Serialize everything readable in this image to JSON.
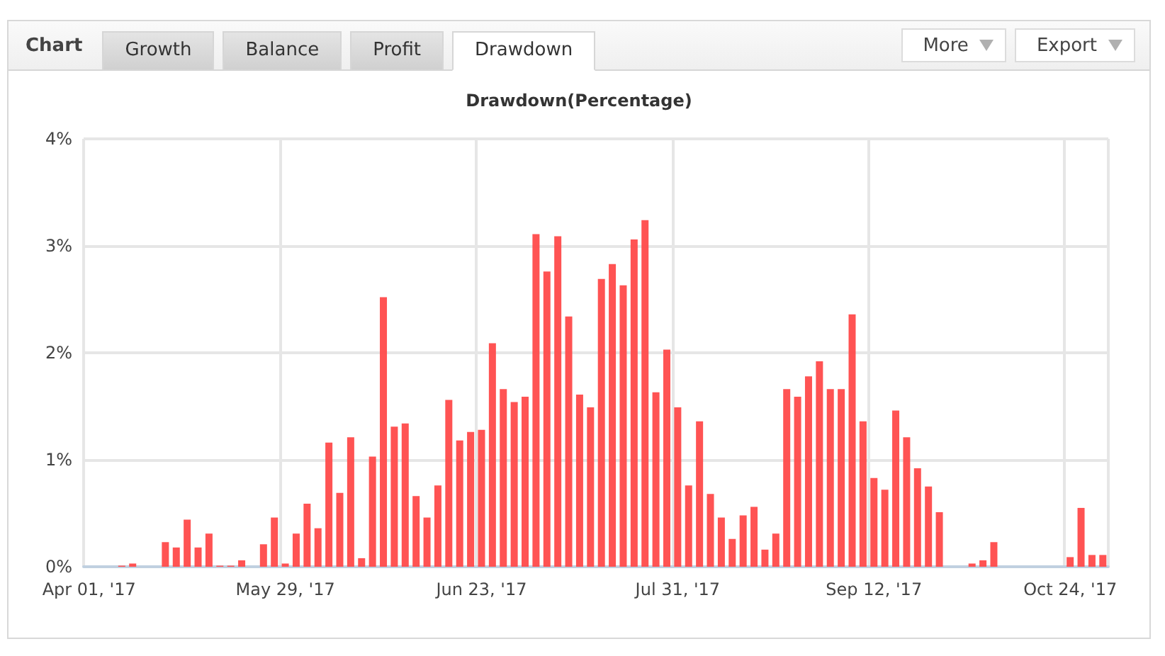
{
  "chart_data": {
    "type": "bar",
    "title": "Drawdown(Percentage)",
    "annotations": [
      "Chart",
      "Growth",
      "Balance",
      "Profit",
      "Drawdown",
      "More",
      "Export"
    ],
    "categories": [
      "Apr 01, '17",
      null,
      null,
      null,
      null,
      null,
      null,
      null,
      null,
      null,
      null,
      null,
      null,
      null,
      null,
      null,
      null,
      null,
      "May 29, '17",
      null,
      null,
      null,
      null,
      null,
      null,
      null,
      null,
      null,
      null,
      null,
      null,
      null,
      null,
      null,
      null,
      null,
      "Jun 23, '17",
      null,
      null,
      null,
      null,
      null,
      null,
      null,
      null,
      null,
      null,
      null,
      null,
      null,
      null,
      null,
      null,
      null,
      "Jul 31, '17",
      null,
      null,
      null,
      null,
      null,
      null,
      null,
      null,
      null,
      null,
      null,
      null,
      null,
      null,
      null,
      null,
      null,
      "Sep 12, '17",
      null,
      null,
      null,
      null,
      null,
      null,
      null,
      null,
      null,
      null,
      null,
      null,
      null,
      null,
      null,
      null,
      null,
      "Oct 24, '17",
      null,
      null,
      null
    ],
    "values": [
      0,
      0,
      0,
      0.01,
      0.03,
      0,
      0,
      0.23,
      0.18,
      0.44,
      0.18,
      0.31,
      0.01,
      0.01,
      0.06,
      0,
      0.21,
      0.46,
      0.03,
      0.31,
      0.59,
      0.36,
      1.16,
      0.69,
      1.21,
      0.08,
      1.03,
      2.52,
      1.31,
      1.34,
      0.66,
      0.46,
      0.76,
      1.56,
      1.18,
      1.26,
      1.28,
      2.09,
      1.66,
      1.54,
      1.59,
      3.11,
      2.76,
      3.09,
      2.34,
      1.61,
      1.49,
      2.69,
      2.83,
      2.63,
      3.06,
      3.24,
      1.63,
      2.03,
      1.49,
      0.76,
      1.36,
      0.68,
      0.46,
      0.26,
      0.48,
      0.56,
      0.16,
      0.31,
      1.66,
      1.59,
      1.78,
      1.92,
      1.66,
      1.66,
      2.36,
      1.36,
      0.83,
      0.72,
      1.46,
      1.21,
      0.92,
      0.75,
      0.51,
      0,
      0,
      0.03,
      0.06,
      0.23,
      0,
      0,
      0,
      0,
      0,
      0,
      0.09,
      0.55,
      0.11,
      0.11
    ],
    "color": "#ff4a4a",
    "ylim": [
      0,
      4
    ],
    "yticks": [
      {
        "value": 0,
        "label": "0%"
      },
      {
        "value": 1,
        "label": "1%"
      },
      {
        "value": 2,
        "label": "2%"
      },
      {
        "value": 3,
        "label": "3%"
      },
      {
        "value": 4,
        "label": "4%"
      }
    ],
    "grid": true
  }
}
